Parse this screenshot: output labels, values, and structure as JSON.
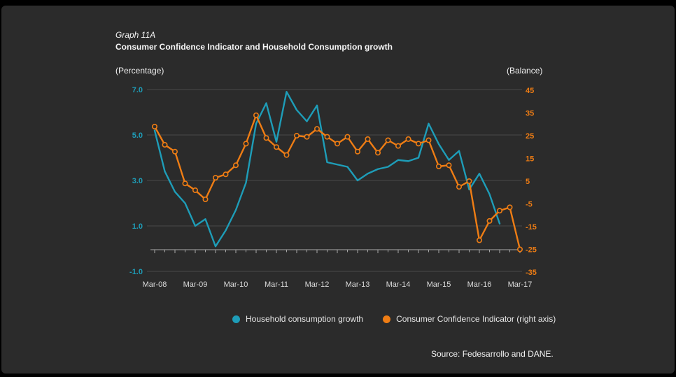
{
  "header": {
    "graph_label": "Graph 11A",
    "title": "Consumer Confidence Indicator and Household Consumption growth",
    "left_axis_unit": "(Percentage)",
    "right_axis_unit": "(Balance)"
  },
  "colors": {
    "panel_background": "#2B2B2B",
    "page_background": "#000000",
    "teal_series": "#1E9DB8",
    "orange_series": "#EF7D14",
    "gridline": "#4A4A4A",
    "axis_line": "#A8A8A8",
    "x_labels": "#DCDCDC"
  },
  "chart_data": {
    "type": "line",
    "x": [
      "Mar-08",
      "Jun-08",
      "Sep-08",
      "Dec-08",
      "Mar-09",
      "Jun-09",
      "Sep-09",
      "Dec-09",
      "Mar-10",
      "Jun-10",
      "Sep-10",
      "Dec-10",
      "Mar-11",
      "Jun-11",
      "Sep-11",
      "Dec-11",
      "Mar-12",
      "Jun-12",
      "Sep-12",
      "Dec-12",
      "Mar-13",
      "Jun-13",
      "Sep-13",
      "Dec-13",
      "Mar-14",
      "Jun-14",
      "Sep-14",
      "Dec-14",
      "Mar-15",
      "Jun-15",
      "Sep-15",
      "Dec-15",
      "Mar-16",
      "Jun-16",
      "Sep-16",
      "Dec-16",
      "Mar-17"
    ],
    "x_tick_labels": [
      "Mar-08",
      "Mar-09",
      "Mar-10",
      "Mar-11",
      "Mar-12",
      "Mar-13",
      "Mar-14",
      "Mar-15",
      "Mar-16",
      "Mar-17"
    ],
    "series": [
      {
        "name": "Household consumption growth",
        "axis": "left",
        "color": "#1E9DB8",
        "marker": "none",
        "values": [
          5.2,
          3.4,
          2.5,
          2.0,
          1.0,
          1.3,
          0.1,
          0.8,
          1.7,
          2.9,
          5.5,
          6.4,
          4.7,
          6.9,
          6.1,
          5.6,
          6.3,
          3.8,
          3.7,
          3.6,
          3.0,
          3.3,
          3.5,
          3.6,
          3.9,
          3.85,
          4.0,
          5.5,
          4.6,
          3.9,
          4.3,
          2.6,
          3.3,
          2.4,
          1.1,
          null,
          null
        ]
      },
      {
        "name": "Consumer Confidence Indicator (right axis)",
        "axis": "right",
        "color": "#EF7D14",
        "marker": "circle",
        "values": [
          29,
          21,
          18,
          4,
          1,
          -3,
          6.5,
          8,
          12,
          21.5,
          34,
          24,
          20,
          16.5,
          25,
          24.5,
          28,
          24.5,
          21.5,
          24.5,
          18,
          23.5,
          17.5,
          23,
          20.5,
          23.5,
          21.5,
          23,
          11.5,
          12,
          2.5,
          5,
          -21,
          -12.5,
          -8,
          -6.5,
          -25
        ]
      }
    ],
    "left_axis": {
      "tick_labels": [
        "7.0",
        "5.0",
        "3.0",
        "1.0",
        "-1.0"
      ],
      "tick_values": [
        7,
        5,
        3,
        1,
        -1
      ],
      "range": [
        -1,
        7
      ],
      "color": "#1E9DB8"
    },
    "right_axis": {
      "tick_labels": [
        "45",
        "35",
        "25",
        "15",
        "5",
        "-5",
        "-15",
        "-25",
        "-35"
      ],
      "tick_values": [
        45,
        35,
        25,
        15,
        5,
        -5,
        -15,
        -25,
        -35
      ],
      "range": [
        -35,
        45
      ],
      "color": "#EF7D14"
    },
    "grid": "horizontal",
    "legend_position": "bottom",
    "title": "Consumer Confidence Indicator and Household Consumption growth"
  },
  "legend": {
    "items": [
      {
        "label": "Household consumption growth",
        "color": "#1E9DB8"
      },
      {
        "label": "Consumer Confidence Indicator (right axis)",
        "color": "#EF7D14"
      }
    ]
  },
  "source": "Source: Fedesarrollo and DANE."
}
